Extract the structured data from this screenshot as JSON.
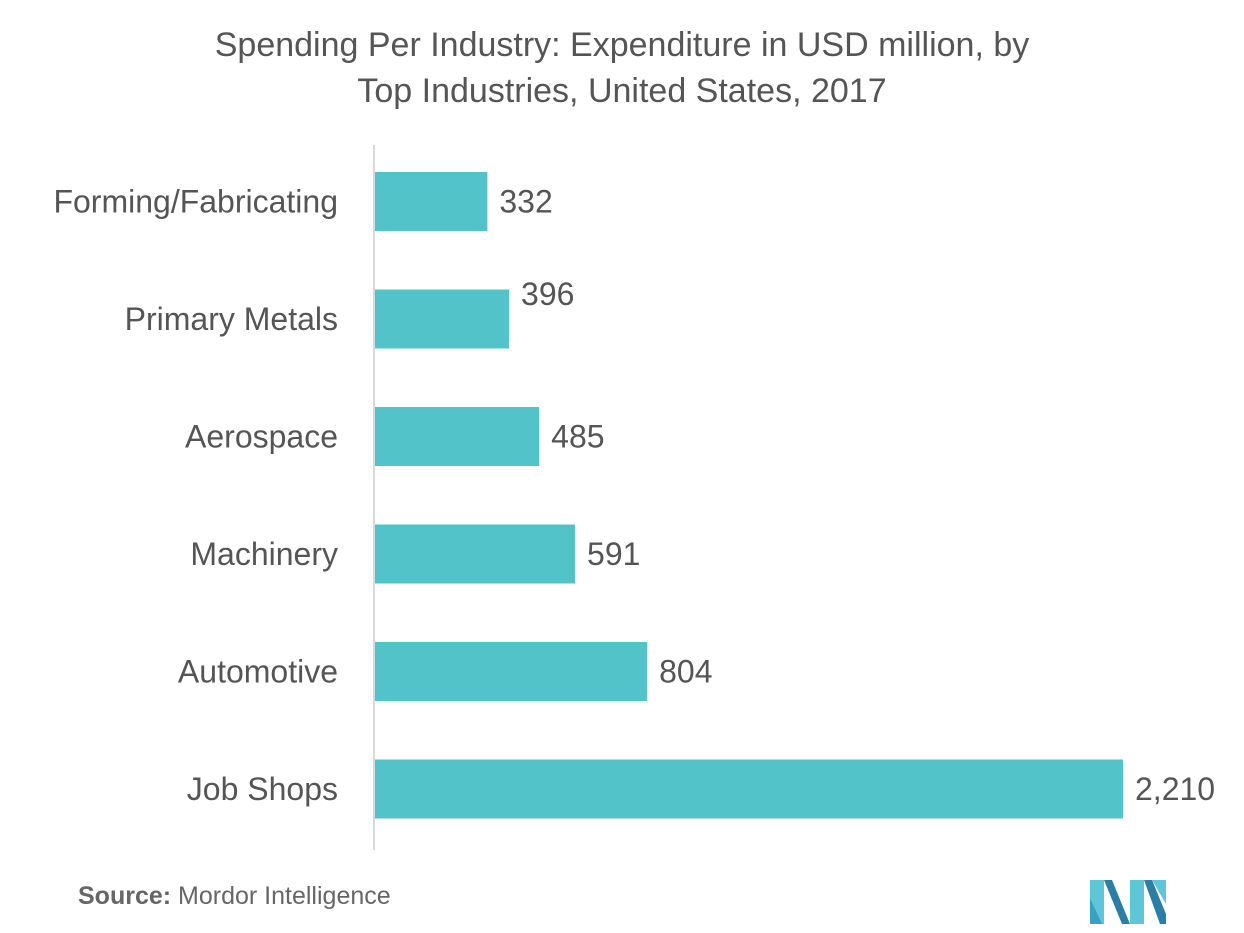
{
  "title_line1": "Spending Per Industry: Expenditure in USD million, by",
  "title_line2": "Top Industries, United States, 2017",
  "source_label": "Source:",
  "source_text": "Mordor Intelligence",
  "bar_color": "#52c4c9",
  "chart_data": {
    "type": "bar",
    "orientation": "horizontal",
    "categories": [
      "Forming/Fabricating",
      "Primary Metals",
      "Aerospace",
      "Machinery",
      "Automotive",
      "Job Shops"
    ],
    "values": [
      332,
      396,
      485,
      591,
      804,
      2210
    ],
    "value_labels": [
      "332",
      "396",
      "485",
      "591",
      "804",
      "2,210"
    ],
    "xlim": [
      0,
      2210
    ],
    "grid": false,
    "legend": "none"
  }
}
